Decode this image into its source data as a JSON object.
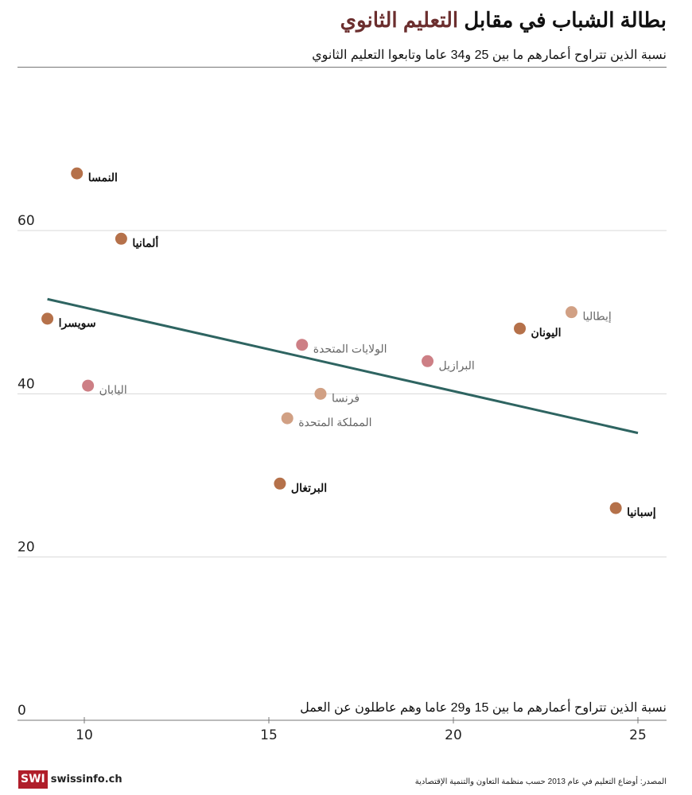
{
  "header": {
    "title_part1": "بطالة الشباب في مقابل",
    "title_part2": "التعليم الثانوي",
    "subtitle": "نسبة الذين تتراوح أعمارهم ما بين 25 و34 عاما وتابعوا التعليم الثانوي"
  },
  "footer": {
    "logo_mark": "SWI",
    "logo_site": "swissinfo.ch",
    "source": "المصدر: أوضاع التعليم في عام 2013 حسب منظمة التعاون والتنمية الإقتصادية"
  },
  "colors": {
    "accent_title": "#6b2e2e",
    "dark_dot": "#b5714a",
    "light_dot": "#d1a084",
    "pink_dot": "#cd7f85",
    "trend_line": "#2e6461",
    "grid": "#d8d8d8"
  },
  "chart_data": {
    "type": "scatter",
    "title": "بطالة الشباب في مقابل التعليم الثانوي",
    "xlabel": "نسبة الذين تتراوح أعمارهم ما بين 15 و29 عاما وهم عاطلون عن العمل",
    "ylabel": "نسبة الذين تتراوح أعمارهم ما بين 25 و34 عاما وتابعوا التعليم الثانوي",
    "xlim": [
      8.2,
      26.2
    ],
    "ylim": [
      0,
      80
    ],
    "x_ticks": [
      10,
      15,
      20,
      25
    ],
    "y_ticks": [
      0,
      20,
      40,
      60
    ],
    "grid": true,
    "points": [
      {
        "label": "النمسا",
        "x": 9.8,
        "y": 67.0,
        "group": "dark"
      },
      {
        "label": "ألمانيا",
        "x": 11.0,
        "y": 59.0,
        "group": "dark"
      },
      {
        "label": "سويسرا",
        "x": 9.0,
        "y": 49.2,
        "group": "dark"
      },
      {
        "label": "اليابان",
        "x": 10.1,
        "y": 41.0,
        "group": "pink"
      },
      {
        "label": "الولايات المتحدة",
        "x": 15.9,
        "y": 46.0,
        "group": "pink"
      },
      {
        "label": "فرنسا",
        "x": 16.4,
        "y": 40.0,
        "group": "light"
      },
      {
        "label": "المملكة المتحدة",
        "x": 15.5,
        "y": 37.0,
        "group": "light"
      },
      {
        "label": "البرتغال",
        "x": 15.3,
        "y": 29.0,
        "group": "dark"
      },
      {
        "label": "البرازيل",
        "x": 19.3,
        "y": 44.0,
        "group": "pink"
      },
      {
        "label": "اليونان",
        "x": 21.8,
        "y": 48.0,
        "group": "dark"
      },
      {
        "label": "إيطاليا",
        "x": 23.2,
        "y": 50.0,
        "group": "light"
      },
      {
        "label": "إسبانيا",
        "x": 24.4,
        "y": 26.0,
        "group": "dark"
      }
    ],
    "trend_line": {
      "x": [
        9.0,
        25.0
      ],
      "y": [
        51.6,
        35.2
      ]
    }
  }
}
